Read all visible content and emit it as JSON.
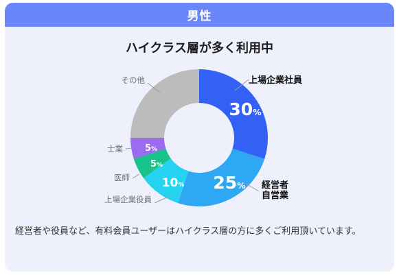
{
  "header": {
    "title": "男性"
  },
  "description": "経営者や役員など、有料会員ユーザーはハイクラス層の方に多くご利用頂いています。",
  "chart_data": {
    "type": "pie",
    "title": "ハイクラス層が多く利用中",
    "slices": [
      {
        "label": "上場企業社員",
        "value": 30,
        "value_label": "30",
        "unit": "%",
        "color": "#3461f5",
        "inner_text_color": "#ffffff"
      },
      {
        "label": "経営者\n自営業",
        "value": 25,
        "value_label": "25",
        "unit": "%",
        "color": "#2ea8f3",
        "inner_text_color": "#ffffff"
      },
      {
        "label": "上場企業役員",
        "value": 10,
        "value_label": "10",
        "unit": "%",
        "color": "#24d3ef",
        "inner_text_color": "#ffffff"
      },
      {
        "label": "医師",
        "value": 5,
        "value_label": "5",
        "unit": "%",
        "color": "#19c28a",
        "inner_text_color": "#ffffff"
      },
      {
        "label": "士業",
        "value": 5,
        "value_label": "5",
        "unit": "%",
        "color": "#9b6cf0",
        "inner_text_color": "#ffffff"
      },
      {
        "label": "その他",
        "value": 25,
        "value_label": "",
        "unit": "",
        "color": "#bcbcbc",
        "inner_text_color": "#ffffff"
      }
    ],
    "bold_labels": [
      "上場企業社員",
      "経営者\n自営業"
    ],
    "donut": true
  }
}
